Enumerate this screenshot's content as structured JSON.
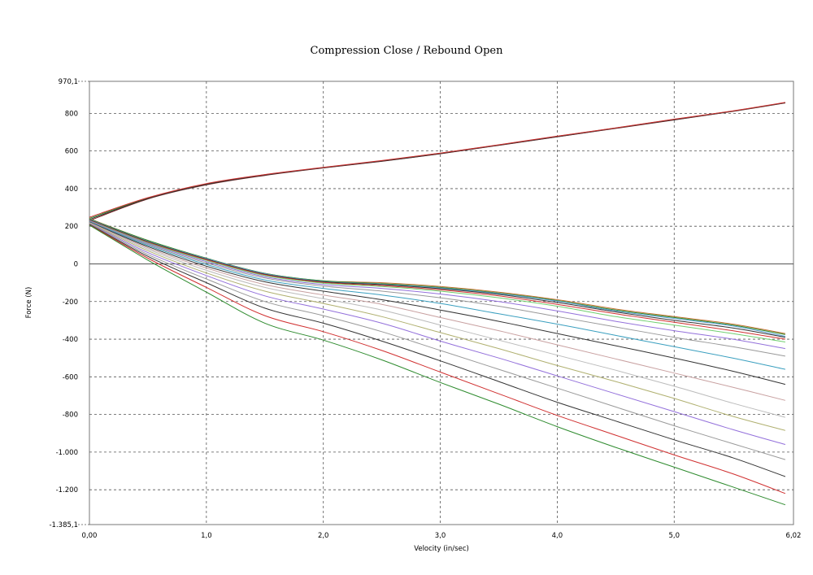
{
  "chart_data": {
    "type": "line",
    "title": "Compression Close / Rebound Open",
    "xlabel": "Velocity (in/sec)",
    "ylabel": "Force (N)",
    "xlim": [
      0,
      6.02
    ],
    "ylim": [
      -1385.1,
      970.1
    ],
    "x_ticks": [
      0,
      1,
      2,
      3,
      4,
      5,
      6.02
    ],
    "x_tick_labels": [
      "0,00",
      "1,0",
      "2,0",
      "3,0",
      "4,0",
      "5,0",
      "6,02"
    ],
    "y_ticks": [
      970.1,
      800,
      600,
      400,
      200,
      0,
      -200,
      -400,
      -600,
      -800,
      -1000,
      -1200,
      -1385.1
    ],
    "y_tick_labels": [
      "970,1",
      "800",
      "600",
      "400",
      "200",
      "0",
      "-200",
      "-400",
      "-600",
      "-800",
      "-1.000",
      "-1.200",
      "-1.385,1"
    ],
    "grid": true,
    "grid_style": "dashed",
    "zero_line": true,
    "x": [
      0,
      0.5,
      1,
      1.5,
      2,
      2.5,
      3,
      3.5,
      4,
      4.5,
      5,
      5.5,
      5.95
    ],
    "series": [
      {
        "color": "#7a1f1f",
        "values": [
          230,
          345,
          420,
          470,
          510,
          545,
          585,
          630,
          675,
          720,
          765,
          810,
          855
        ]
      },
      {
        "color": "#2e8b2e",
        "values": [
          242,
          350,
          425,
          474,
          512,
          548,
          588,
          632,
          678,
          722,
          768,
          812,
          857
        ]
      },
      {
        "color": "#333333",
        "values": [
          236,
          347,
          422,
          472,
          511,
          546,
          586,
          631,
          676,
          721,
          766,
          811,
          856
        ]
      },
      {
        "color": "#d03030",
        "values": [
          248,
          352,
          427,
          475,
          513,
          549,
          589,
          633,
          679,
          723,
          769,
          813,
          858
        ]
      },
      {
        "color": "#c07030",
        "values": [
          240,
          125,
          30,
          -50,
          -90,
          -100,
          -120,
          -150,
          -190,
          -240,
          -280,
          -320,
          -370
        ]
      },
      {
        "color": "#2e8b2e",
        "values": [
          238,
          125,
          30,
          -50,
          -90,
          -105,
          -125,
          -155,
          -195,
          -245,
          -285,
          -325,
          -375
        ]
      },
      {
        "color": "#5a9fd4",
        "values": [
          236,
          120,
          28,
          -52,
          -93,
          -108,
          -128,
          -158,
          -198,
          -250,
          -290,
          -330,
          -385
        ]
      },
      {
        "color": "#333333",
        "values": [
          234,
          118,
          25,
          -55,
          -95,
          -110,
          -132,
          -162,
          -205,
          -255,
          -300,
          -340,
          -390
        ]
      },
      {
        "color": "#d03030",
        "values": [
          232,
          115,
          22,
          -58,
          -98,
          -115,
          -138,
          -170,
          -215,
          -265,
          -310,
          -355,
          -400
        ]
      },
      {
        "color": "#6fcf6f",
        "values": [
          230,
          112,
          18,
          -62,
          -102,
          -120,
          -145,
          -180,
          -225,
          -280,
          -325,
          -370,
          -415
        ]
      },
      {
        "color": "#9370db",
        "values": [
          228,
          108,
          12,
          -68,
          -110,
          -130,
          -160,
          -200,
          -250,
          -305,
          -355,
          -400,
          -450
        ]
      },
      {
        "color": "#999999",
        "values": [
          226,
          103,
          5,
          -75,
          -118,
          -145,
          -180,
          -225,
          -280,
          -335,
          -390,
          -440,
          -490
        ]
      },
      {
        "color": "#3a9fbf",
        "values": [
          224,
          98,
          -3,
          -85,
          -130,
          -165,
          -210,
          -265,
          -320,
          -380,
          -440,
          -500,
          -560
        ]
      },
      {
        "color": "#333333",
        "values": [
          222,
          92,
          -12,
          -95,
          -145,
          -190,
          -245,
          -305,
          -370,
          -435,
          -500,
          -570,
          -640
        ]
      },
      {
        "color": "#c8a0a0",
        "values": [
          220,
          85,
          -22,
          -110,
          -165,
          -215,
          -285,
          -355,
          -430,
          -505,
          -580,
          -655,
          -725
        ]
      },
      {
        "color": "#bbbbbb",
        "values": [
          218,
          78,
          -34,
          -125,
          -185,
          -245,
          -325,
          -405,
          -485,
          -565,
          -650,
          -740,
          -815
        ]
      },
      {
        "color": "#b0b070",
        "values": [
          216,
          70,
          -48,
          -145,
          -210,
          -280,
          -365,
          -450,
          -540,
          -625,
          -715,
          -810,
          -885
        ]
      },
      {
        "color": "#9370db",
        "values": [
          214,
          60,
          -62,
          -170,
          -240,
          -315,
          -410,
          -500,
          -595,
          -690,
          -785,
          -880,
          -960
        ]
      },
      {
        "color": "#999999",
        "values": [
          212,
          50,
          -80,
          -200,
          -275,
          -360,
          -460,
          -560,
          -660,
          -760,
          -860,
          -955,
          -1040
        ]
      },
      {
        "color": "#333333",
        "values": [
          210,
          40,
          -100,
          -235,
          -315,
          -410,
          -515,
          -625,
          -735,
          -835,
          -935,
          -1030,
          -1130
        ]
      },
      {
        "color": "#d03030",
        "values": [
          208,
          30,
          -125,
          -275,
          -360,
          -460,
          -575,
          -690,
          -805,
          -910,
          -1015,
          -1115,
          -1220
        ]
      },
      {
        "color": "#2e8b2e",
        "values": [
          206,
          20,
          -150,
          -315,
          -405,
          -510,
          -630,
          -745,
          -865,
          -975,
          -1080,
          -1185,
          -1280
        ]
      }
    ]
  }
}
